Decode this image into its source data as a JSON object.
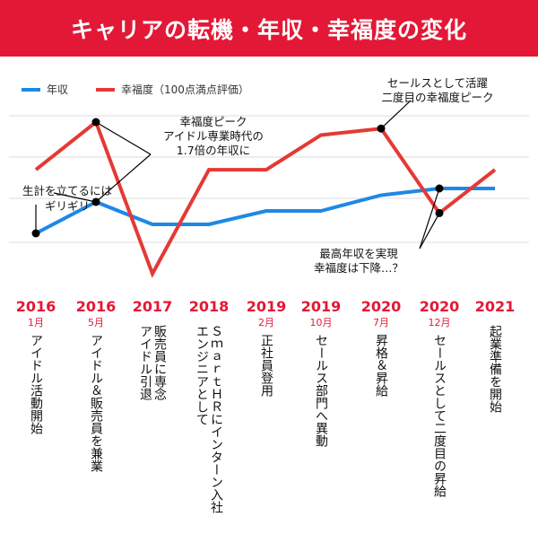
{
  "header": {
    "title": "キャリアの転機・年収・幸福度の変化"
  },
  "colors": {
    "brand_red": "#e31836",
    "income_blue": "#1e88e5",
    "happiness_red": "#e53935",
    "grid": "#dddddd"
  },
  "chart_data": {
    "type": "line",
    "title": "キャリアの転機・年収・幸福度の変化",
    "categories": [
      "2016 1月",
      "2016 5月",
      "2017",
      "2018",
      "2019 2月",
      "2019 10月",
      "2020 7月",
      "2020 12月",
      "2021"
    ],
    "series": [
      {
        "name": "年収",
        "values": [
          1.0,
          1.7,
          1.2,
          1.2,
          1.5,
          1.5,
          1.85,
          2.0,
          2.0
        ]
      },
      {
        "name": "幸福度（100点満点評価）",
        "values": [
          68,
          90,
          20,
          68,
          68,
          84,
          87,
          48,
          68
        ]
      }
    ],
    "ylim_income": [
      -0.6,
      4.8
    ],
    "ylim_happiness": [
      20,
      90
    ],
    "grid": true,
    "legend": "top-left",
    "annotations": [
      {
        "lines": [
          "生計を立てるには",
          "ギリギリ"
        ]
      },
      {
        "lines": [
          "幸福度ピーク",
          "アイドル専業時代の",
          "1.7倍の年収に"
        ]
      },
      {
        "lines": [
          "セールスとして活躍",
          "二度目の幸福度ピーク"
        ]
      },
      {
        "lines": [
          "最高年収を実現",
          "幸福度は下降…？"
        ]
      }
    ]
  },
  "timeline": [
    {
      "year": "2016",
      "month": "1月",
      "event": "アイドル活動開始"
    },
    {
      "year": "2016",
      "month": "5月",
      "event": "アイドル＆販売員を兼業"
    },
    {
      "year": "2017",
      "month": "",
      "event": "アイドル引退\n販売員に専念"
    },
    {
      "year": "2018",
      "month": "",
      "event": "エンジニアとして\nＳｍａｒｔＨＲにインターン入社"
    },
    {
      "year": "2019",
      "month": "2月",
      "event": "正社員登用"
    },
    {
      "year": "2019",
      "month": "10月",
      "event": "セールス部門へ異動"
    },
    {
      "year": "2020",
      "month": "7月",
      "event": "昇格＆昇給"
    },
    {
      "year": "2020",
      "month": "12月",
      "event": "セールスとして二度目の昇給"
    },
    {
      "year": "2021",
      "month": "",
      "event": "起業準備を開始"
    }
  ]
}
